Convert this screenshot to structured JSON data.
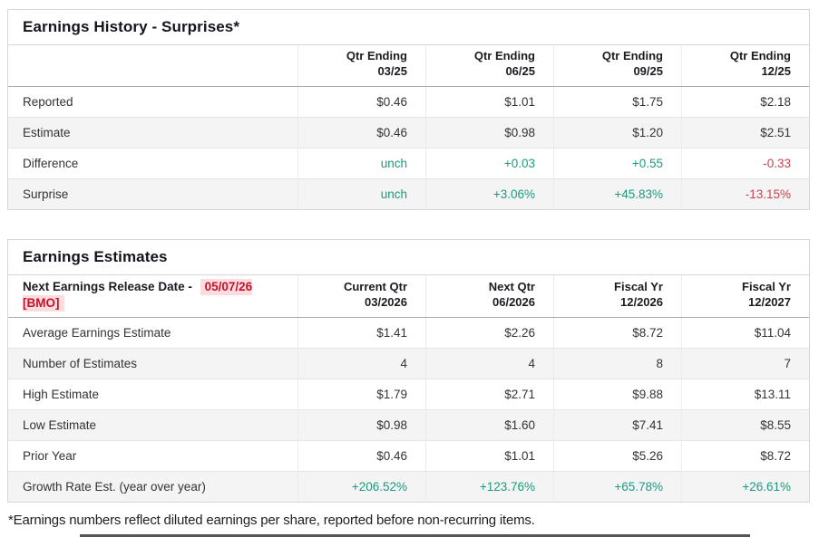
{
  "colors": {
    "positive_green": "#1a9b7f",
    "negative_red": "#cd4150",
    "release_date_red": "#c41230",
    "release_date_highlight": "#fcdcdc",
    "stripe_row_bg": "#f4f4f4",
    "table_border": "#d6d6d6"
  },
  "table_history": {
    "title": "Earnings History - Surprises*",
    "columns": [
      "Qtr Ending\n03/25",
      "Qtr Ending\n06/25",
      "Qtr Ending\n09/25",
      "Qtr Ending\n12/25"
    ],
    "rows": [
      {
        "label": "Reported",
        "values": [
          "$0.46",
          "$1.01",
          "$1.75",
          "$2.18"
        ]
      },
      {
        "label": "Estimate",
        "values": [
          "$0.46",
          "$0.98",
          "$1.20",
          "$2.51"
        ]
      },
      {
        "label": "Difference",
        "values": [
          {
            "text": "unch",
            "color": "green"
          },
          {
            "text": "+0.03",
            "color": "green"
          },
          {
            "text": "+0.55",
            "color": "green"
          },
          {
            "text": "-0.33",
            "color": "red"
          }
        ]
      },
      {
        "label": "Surprise",
        "values": [
          {
            "text": "unch",
            "color": "green"
          },
          {
            "text": "+3.06%",
            "color": "green"
          },
          {
            "text": "+45.83%",
            "color": "green"
          },
          {
            "text": "-13.15%",
            "color": "red"
          }
        ]
      }
    ]
  },
  "table_estimates": {
    "title": "Earnings Estimates",
    "release_label": "Next Earnings Release Date - ",
    "release_date": "05/07/26 [BMO]",
    "columns": [
      "Current Qtr\n03/2026",
      "Next Qtr\n06/2026",
      "Fiscal Yr\n12/2026",
      "Fiscal Yr\n12/2027"
    ],
    "rows": [
      {
        "label": "Average Earnings Estimate",
        "values": [
          "$1.41",
          "$2.26",
          "$8.72",
          "$11.04"
        ]
      },
      {
        "label": "Number of Estimates",
        "values": [
          "4",
          "4",
          "8",
          "7"
        ]
      },
      {
        "label": "High Estimate",
        "values": [
          "$1.79",
          "$2.71",
          "$9.88",
          "$13.11"
        ]
      },
      {
        "label": "Low Estimate",
        "values": [
          "$0.98",
          "$1.60",
          "$7.41",
          "$8.55"
        ]
      },
      {
        "label": "Prior Year",
        "values": [
          "$0.46",
          "$1.01",
          "$5.26",
          "$8.72"
        ]
      },
      {
        "label": "Growth Rate Est. (year over year)",
        "values": [
          {
            "text": "+206.52%",
            "color": "green"
          },
          {
            "text": "+123.76%",
            "color": "green"
          },
          {
            "text": "+65.78%",
            "color": "green"
          },
          {
            "text": "+26.61%",
            "color": "green"
          }
        ]
      }
    ]
  },
  "footnote": "*Earnings numbers reflect diluted earnings per share, reported before non-recurring items."
}
